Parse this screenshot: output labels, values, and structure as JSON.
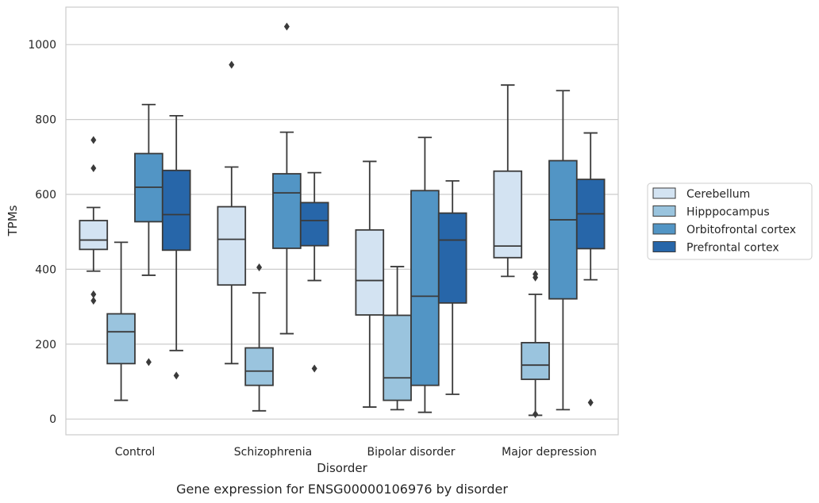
{
  "chart_data": {
    "type": "box",
    "title": "",
    "caption": "Gene expression for ENSG00000106976 by disorder",
    "xlabel": "Disorder",
    "ylabel": "TPMs",
    "ylim": [
      -42,
      1100
    ],
    "yticks": [
      0,
      200,
      400,
      600,
      800,
      1000
    ],
    "grid": "horizontal",
    "legend_position": "right",
    "categories": [
      "Control",
      "Schizophrenia",
      "Bipolar disorder",
      "Major depression"
    ],
    "series": [
      {
        "name": "Cerebellum",
        "color": "#d3e3f2",
        "boxes": [
          {
            "whislo": 395,
            "q1": 453,
            "med": 478,
            "q3": 530,
            "whishi": 565,
            "fliers": [
              745,
              670,
              333,
              316
            ]
          },
          {
            "whislo": 148,
            "q1": 358,
            "med": 480,
            "q3": 567,
            "whishi": 673,
            "fliers": [
              946
            ]
          },
          {
            "whislo": 32,
            "q1": 278,
            "med": 370,
            "q3": 505,
            "whishi": 688,
            "fliers": []
          },
          {
            "whislo": 381,
            "q1": 431,
            "med": 462,
            "q3": 662,
            "whishi": 892,
            "fliers": []
          }
        ]
      },
      {
        "name": "Hipppocampus",
        "color": "#9ac4de",
        "boxes": [
          {
            "whislo": 50,
            "q1": 148,
            "med": 233,
            "q3": 281,
            "whishi": 472,
            "fliers": []
          },
          {
            "whislo": 22,
            "q1": 90,
            "med": 128,
            "q3": 190,
            "whishi": 337,
            "fliers": [
              405
            ]
          },
          {
            "whislo": 25,
            "q1": 50,
            "med": 110,
            "q3": 277,
            "whishi": 407,
            "fliers": []
          },
          {
            "whislo": 10,
            "q1": 106,
            "med": 144,
            "q3": 204,
            "whishi": 333,
            "fliers": [
              387,
              378,
              13
            ]
          }
        ]
      },
      {
        "name": "Orbitofrontal cortex",
        "color": "#5295c5",
        "boxes": [
          {
            "whislo": 384,
            "q1": 527,
            "med": 619,
            "q3": 709,
            "whishi": 840,
            "fliers": [
              152
            ]
          },
          {
            "whislo": 228,
            "q1": 456,
            "med": 604,
            "q3": 655,
            "whishi": 766,
            "fliers": [
              1048
            ]
          },
          {
            "whislo": 18,
            "q1": 90,
            "med": 328,
            "q3": 610,
            "whishi": 752,
            "fliers": []
          },
          {
            "whislo": 25,
            "q1": 321,
            "med": 532,
            "q3": 690,
            "whishi": 877,
            "fliers": []
          }
        ]
      },
      {
        "name": "Prefrontal cortex",
        "color": "#2766a9",
        "boxes": [
          {
            "whislo": 183,
            "q1": 451,
            "med": 546,
            "q3": 664,
            "whishi": 810,
            "fliers": [
              116
            ]
          },
          {
            "whislo": 370,
            "q1": 463,
            "med": 530,
            "q3": 578,
            "whishi": 658,
            "fliers": [
              135
            ]
          },
          {
            "whislo": 66,
            "q1": 310,
            "med": 478,
            "q3": 550,
            "whishi": 636,
            "fliers": []
          },
          {
            "whislo": 372,
            "q1": 455,
            "med": 548,
            "q3": 640,
            "whishi": 764,
            "fliers": [
              44
            ]
          }
        ]
      }
    ]
  }
}
